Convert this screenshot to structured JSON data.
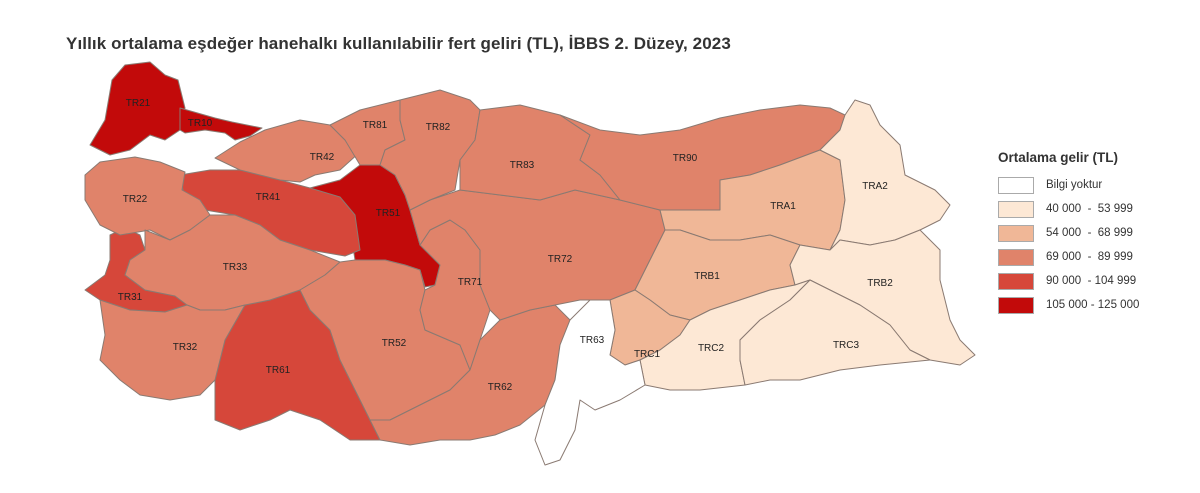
{
  "title": "Yıllık ortalama eşdeğer hanehalkı kullanılabilir fert geliri (TL), İBBS 2. Düzey, 2023",
  "legend": {
    "title": "Ortalama gelir (TL)",
    "classes": [
      {
        "label": "Bilgi yoktur",
        "color": "#ffffff"
      },
      {
        "label": "40 000  -  53 999",
        "color": "#fde8d5"
      },
      {
        "label": "54 000  -  68 999",
        "color": "#f0b797"
      },
      {
        "label": "69 000  -  89 999",
        "color": "#e0836a"
      },
      {
        "label": "90 000  - 104 999",
        "color": "#d6473a"
      },
      {
        "label": "105 000 - 125 000",
        "color": "#c20a0a"
      }
    ]
  },
  "regions": [
    {
      "code": "TR21",
      "class": 5
    },
    {
      "code": "TR10",
      "class": 5
    },
    {
      "code": "TR51",
      "class": 5
    },
    {
      "code": "TR41",
      "class": 4
    },
    {
      "code": "TR31",
      "class": 4
    },
    {
      "code": "TR61",
      "class": 4
    },
    {
      "code": "TR22",
      "class": 3
    },
    {
      "code": "TR42",
      "class": 3
    },
    {
      "code": "TR33",
      "class": 3
    },
    {
      "code": "TR32",
      "class": 3
    },
    {
      "code": "TR52",
      "class": 3
    },
    {
      "code": "TR71",
      "class": 3
    },
    {
      "code": "TR62",
      "class": 3
    },
    {
      "code": "TR72",
      "class": 3
    },
    {
      "code": "TR81",
      "class": 3
    },
    {
      "code": "TR82",
      "class": 3
    },
    {
      "code": "TR83",
      "class": 3
    },
    {
      "code": "TR90",
      "class": 3
    },
    {
      "code": "TRA1",
      "class": 2
    },
    {
      "code": "TRB1",
      "class": 2
    },
    {
      "code": "TRC1",
      "class": 2
    },
    {
      "code": "TRA2",
      "class": 1
    },
    {
      "code": "TRB2",
      "class": 1
    },
    {
      "code": "TRC2",
      "class": 1
    },
    {
      "code": "TRC3",
      "class": 1
    },
    {
      "code": "TR63",
      "class": 0
    }
  ]
}
